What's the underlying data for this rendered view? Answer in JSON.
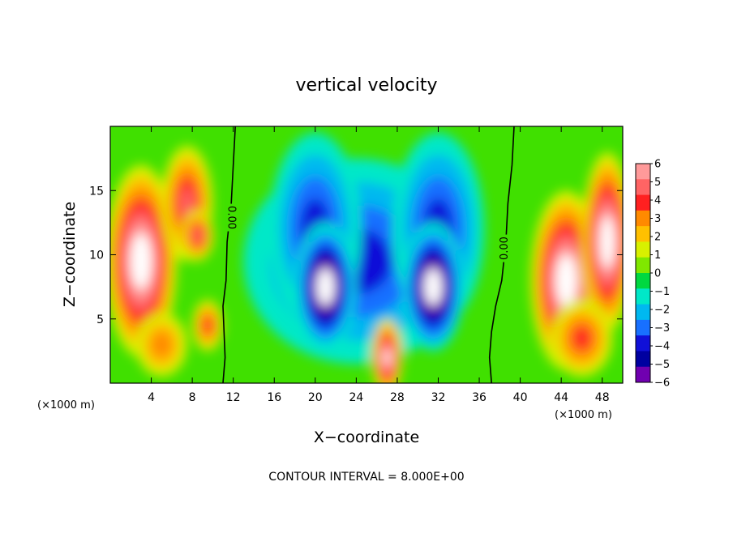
{
  "chart_data": {
    "type": "heatmap",
    "title": "vertical velocity",
    "xlabel": "X−coordinate",
    "ylabel": "Z−coordinate",
    "x_unit_label_left": "(×1000 m)",
    "x_unit_label_right": "(×1000 m)",
    "xlim": [
      0,
      50
    ],
    "ylim": [
      0,
      20
    ],
    "x_ticks": [
      4,
      8,
      12,
      16,
      20,
      24,
      28,
      32,
      36,
      40,
      44,
      48
    ],
    "y_ticks": [
      5,
      10,
      15
    ],
    "colorbar": {
      "ticks": [
        6,
        5,
        4,
        3,
        2,
        1,
        0,
        -1,
        -2,
        -3,
        -4,
        -5,
        -6
      ],
      "tick_labels": [
        "6",
        "5",
        "4",
        "3",
        "2",
        "1",
        "0",
        "−1",
        "−2",
        "−3",
        "−4",
        "−5",
        "−6"
      ],
      "colors": [
        "#ff9a9a",
        "#ff6464",
        "#ff2020",
        "#ff8a00",
        "#ffc000",
        "#d8f000",
        "#80e800",
        "#00d840",
        "#00e8c8",
        "#00b8f0",
        "#1870ff",
        "#1010d8",
        "#0000a0",
        "#7000b0"
      ],
      "saturation_color_high": "#ffffff",
      "saturation_color_low": "#ffffff"
    },
    "contour_labels": [
      {
        "text": "0.00",
        "x": 11.8,
        "y": 12.9
      },
      {
        "text": "0.00",
        "x": 38.5,
        "y": 10.5
      }
    ],
    "zero_contours": [
      [
        [
          12.2,
          20
        ],
        [
          12.0,
          17
        ],
        [
          11.8,
          14
        ],
        [
          11.4,
          11
        ],
        [
          11.3,
          8
        ],
        [
          11.0,
          6
        ],
        [
          11.1,
          4
        ],
        [
          11.2,
          2
        ],
        [
          11.0,
          0
        ]
      ],
      [
        [
          39.4,
          20
        ],
        [
          39.2,
          17
        ],
        [
          38.8,
          14
        ],
        [
          38.6,
          11
        ],
        [
          38.2,
          8
        ],
        [
          37.6,
          6
        ],
        [
          37.2,
          4
        ],
        [
          37.0,
          2
        ],
        [
          37.2,
          0
        ]
      ]
    ],
    "features": [
      {
        "sign": "positive",
        "peak": 9,
        "cx": 3.0,
        "cz": 9.5,
        "rx": 3.5,
        "rz": 7.5
      },
      {
        "sign": "positive",
        "peak": 5,
        "cx": 7.5,
        "cz": 14.0,
        "rx": 2.5,
        "rz": 4.5
      },
      {
        "sign": "positive",
        "peak": 5,
        "cx": 8.5,
        "cz": 11.5,
        "rx": 1.6,
        "rz": 2.0
      },
      {
        "sign": "positive",
        "peak": 4,
        "cx": 9.5,
        "cz": 4.5,
        "rx": 1.5,
        "rz": 2.0
      },
      {
        "sign": "positive",
        "peak": 3,
        "cx": 5.0,
        "cz": 3.0,
        "rx": 2.5,
        "rz": 2.5
      },
      {
        "sign": "negative",
        "peak": -4,
        "cx": 24.0,
        "cz": 9.5,
        "rx": 11.0,
        "rz": 8.0
      },
      {
        "sign": "negative",
        "peak": -4,
        "cx": 20.0,
        "cz": 12.0,
        "rx": 4.5,
        "rz": 7.5
      },
      {
        "sign": "negative",
        "peak": -4,
        "cx": 32.0,
        "cz": 12.0,
        "rx": 4.5,
        "rz": 7.5
      },
      {
        "sign": "negative",
        "peak": -9,
        "cx": 21.0,
        "cz": 7.5,
        "rx": 3.0,
        "rz": 5.0
      },
      {
        "sign": "negative",
        "peak": -9,
        "cx": 31.5,
        "cz": 7.5,
        "rx": 3.0,
        "rz": 5.0
      },
      {
        "sign": "positive",
        "peak": 8,
        "cx": 27.0,
        "cz": 2.0,
        "rx": 1.5,
        "rz": 3.0
      },
      {
        "sign": "positive",
        "peak": 9,
        "cx": 44.5,
        "cz": 8.0,
        "rx": 3.5,
        "rz": 7.0
      },
      {
        "sign": "positive",
        "peak": 9,
        "cx": 48.5,
        "cz": 11.0,
        "rx": 2.5,
        "rz": 7.0
      },
      {
        "sign": "positive",
        "peak": 4,
        "cx": 46.0,
        "cz": 3.5,
        "rx": 3.0,
        "rz": 3.0
      }
    ],
    "grid": false,
    "legend_position": "right"
  },
  "caption": "CONTOUR INTERVAL = 8.000E+00"
}
